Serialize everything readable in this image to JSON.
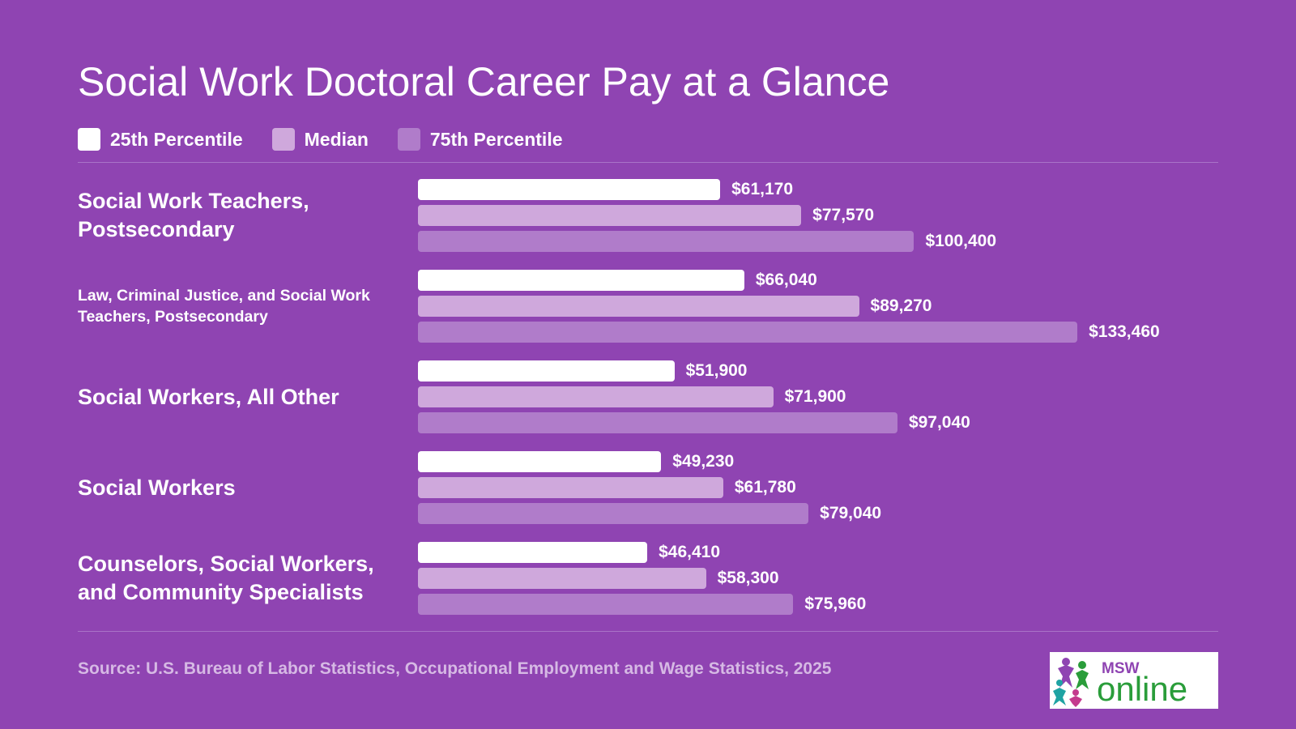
{
  "title": "Social Work Doctoral Career Pay at a Glance",
  "legend": [
    {
      "label": "25th Percentile",
      "color": "#ffffff"
    },
    {
      "label": "Median",
      "color": "#cfa8dc"
    },
    {
      "label": "75th Percentile",
      "color": "#b07cca"
    }
  ],
  "chart_data": {
    "type": "bar",
    "orientation": "horizontal",
    "categories": [
      "Social Work Teachers, Postsecondary",
      "Law, Criminal Justice, and Social Work Teachers, Postsecondary",
      "Social Workers, All Other",
      "Social Workers",
      "Counselors, Social Workers, and Community Specialists"
    ],
    "series": [
      {
        "name": "25th Percentile",
        "color": "#ffffff",
        "values": [
          61170,
          66040,
          51900,
          49230,
          46410
        ],
        "labels": [
          "$61,170",
          "$66,040",
          "$51,900",
          "$49,230",
          "$46,410"
        ]
      },
      {
        "name": "Median",
        "color": "#cfa8dc",
        "values": [
          77570,
          89270,
          71900,
          61780,
          58300
        ],
        "labels": [
          "$77,570",
          "$89,270",
          "$71,900",
          "$61,780",
          "$58,300"
        ]
      },
      {
        "name": "75th Percentile",
        "color": "#b07cca",
        "values": [
          100400,
          133460,
          97040,
          79040,
          75960
        ],
        "labels": [
          "$100,400",
          "$133,460",
          "$97,040",
          "$79,040",
          "$75,960"
        ]
      }
    ],
    "legend_position": "top-left",
    "grid": false
  },
  "source": "Source: U.S. Bureau of Labor Statistics, Occupational Employment and Wage Statistics, 2025",
  "logo": {
    "line1": "MSW",
    "line2": "online"
  }
}
